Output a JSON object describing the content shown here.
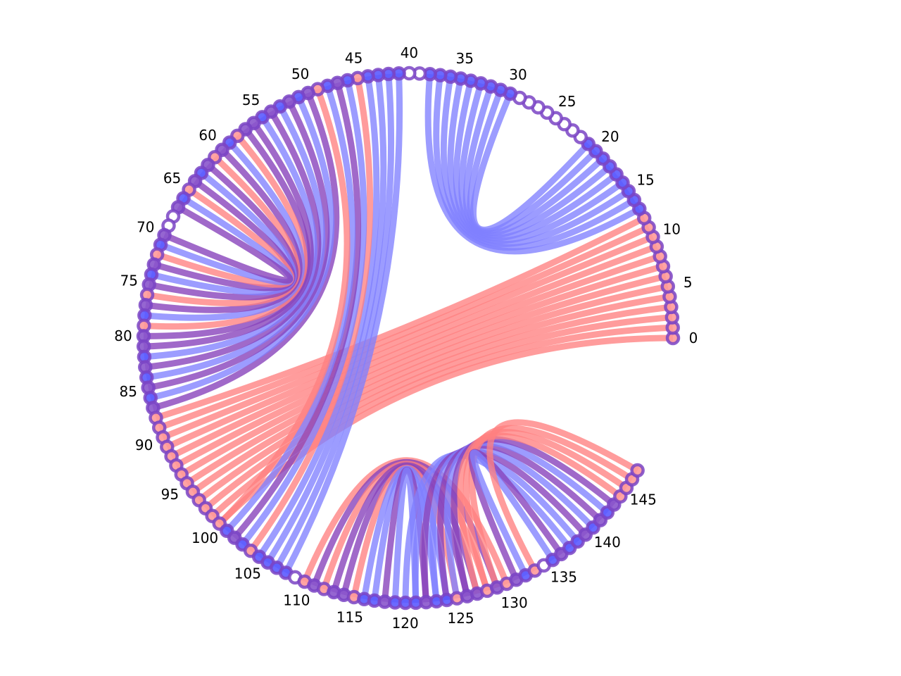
{
  "chart_data": {
    "type": "chord",
    "node_count": 148,
    "angle_span_degrees": 330,
    "tick_labels": [
      "0",
      "5",
      "10",
      "15",
      "20",
      "25",
      "30",
      "35",
      "40",
      "45",
      "50",
      "55",
      "60",
      "65",
      "70",
      "75",
      "80",
      "85",
      "90",
      "95",
      "100",
      "105",
      "110",
      "115",
      "120",
      "125",
      "130",
      "135",
      "140",
      "145"
    ],
    "colors": {
      "red": "#ff8080",
      "blue": "#8080ff",
      "purple": "#8844bb",
      "node_edge": "#7a44c4"
    },
    "links": [
      {
        "from": 0,
        "to": 100,
        "color": "red"
      },
      {
        "from": 1,
        "to": 99,
        "color": "red"
      },
      {
        "from": 2,
        "to": 98,
        "color": "red"
      },
      {
        "from": 3,
        "to": 97,
        "color": "red"
      },
      {
        "from": 4,
        "to": 96,
        "color": "red"
      },
      {
        "from": 5,
        "to": 95,
        "color": "red"
      },
      {
        "from": 6,
        "to": 94,
        "color": "red"
      },
      {
        "from": 7,
        "to": 93,
        "color": "red"
      },
      {
        "from": 8,
        "to": 92,
        "color": "red"
      },
      {
        "from": 9,
        "to": 91,
        "color": "red"
      },
      {
        "from": 10,
        "to": 90,
        "color": "red"
      },
      {
        "from": 11,
        "to": 89,
        "color": "red"
      },
      {
        "from": 12,
        "to": 88,
        "color": "red"
      },
      {
        "from": 13,
        "to": 38,
        "color": "blue"
      },
      {
        "from": 14,
        "to": 37,
        "color": "blue"
      },
      {
        "from": 15,
        "to": 36,
        "color": "blue"
      },
      {
        "from": 16,
        "to": 35,
        "color": "blue"
      },
      {
        "from": 17,
        "to": 34,
        "color": "blue"
      },
      {
        "from": 18,
        "to": 33,
        "color": "blue"
      },
      {
        "from": 19,
        "to": 32,
        "color": "blue"
      },
      {
        "from": 20,
        "to": 31,
        "color": "blue"
      },
      {
        "from": 21,
        "to": 30,
        "color": "blue"
      },
      {
        "from": 41,
        "to": 108,
        "color": "blue"
      },
      {
        "from": 42,
        "to": 107,
        "color": "blue"
      },
      {
        "from": 43,
        "to": 106,
        "color": "blue"
      },
      {
        "from": 44,
        "to": 105,
        "color": "blue"
      },
      {
        "from": 45,
        "to": 104,
        "color": "red"
      },
      {
        "from": 46,
        "to": 103,
        "color": "blue"
      },
      {
        "from": 47,
        "to": 102,
        "color": "purple"
      },
      {
        "from": 48,
        "to": 101,
        "color": "blue"
      },
      {
        "from": 49,
        "to": 100,
        "color": "red"
      },
      {
        "from": 50,
        "to": 87,
        "color": "purple"
      },
      {
        "from": 51,
        "to": 86,
        "color": "blue"
      },
      {
        "from": 52,
        "to": 85,
        "color": "purple"
      },
      {
        "from": 53,
        "to": 84,
        "color": "blue"
      },
      {
        "from": 54,
        "to": 83,
        "color": "purple"
      },
      {
        "from": 55,
        "to": 82,
        "color": "blue"
      },
      {
        "from": 56,
        "to": 81,
        "color": "purple"
      },
      {
        "from": 57,
        "to": 80,
        "color": "purple"
      },
      {
        "from": 58,
        "to": 79,
        "color": "red"
      },
      {
        "from": 59,
        "to": 78,
        "color": "blue"
      },
      {
        "from": 60,
        "to": 77,
        "color": "purple"
      },
      {
        "from": 61,
        "to": 76,
        "color": "red"
      },
      {
        "from": 62,
        "to": 75,
        "color": "purple"
      },
      {
        "from": 63,
        "to": 74,
        "color": "blue"
      },
      {
        "from": 64,
        "to": 73,
        "color": "purple"
      },
      {
        "from": 65,
        "to": 72,
        "color": "red"
      },
      {
        "from": 66,
        "to": 71,
        "color": "blue"
      },
      {
        "from": 67,
        "to": 70,
        "color": "purple"
      },
      {
        "from": 110,
        "to": 130,
        "color": "red"
      },
      {
        "from": 111,
        "to": 129,
        "color": "purple"
      },
      {
        "from": 112,
        "to": 128,
        "color": "red"
      },
      {
        "from": 113,
        "to": 127,
        "color": "purple"
      },
      {
        "from": 114,
        "to": 126,
        "color": "purple"
      },
      {
        "from": 115,
        "to": 125,
        "color": "red"
      },
      {
        "from": 116,
        "to": 124,
        "color": "blue"
      },
      {
        "from": 117,
        "to": 123,
        "color": "blue"
      },
      {
        "from": 118,
        "to": 122,
        "color": "purple"
      },
      {
        "from": 119,
        "to": 121,
        "color": "blue"
      },
      {
        "from": 120,
        "to": 137,
        "color": "blue"
      },
      {
        "from": 121,
        "to": 138,
        "color": "blue"
      },
      {
        "from": 122,
        "to": 139,
        "color": "purple"
      },
      {
        "from": 123,
        "to": 140,
        "color": "blue"
      },
      {
        "from": 124,
        "to": 141,
        "color": "purple"
      },
      {
        "from": 125,
        "to": 142,
        "color": "blue"
      },
      {
        "from": 126,
        "to": 143,
        "color": "purple"
      },
      {
        "from": 127,
        "to": 144,
        "color": "red"
      },
      {
        "from": 128,
        "to": 145,
        "color": "red"
      },
      {
        "from": 129,
        "to": 146,
        "color": "red"
      },
      {
        "from": 131,
        "to": 136,
        "color": "purple"
      },
      {
        "from": 132,
        "to": 135,
        "color": "blue"
      },
      {
        "from": 133,
        "to": 147,
        "color": "red"
      }
    ]
  }
}
